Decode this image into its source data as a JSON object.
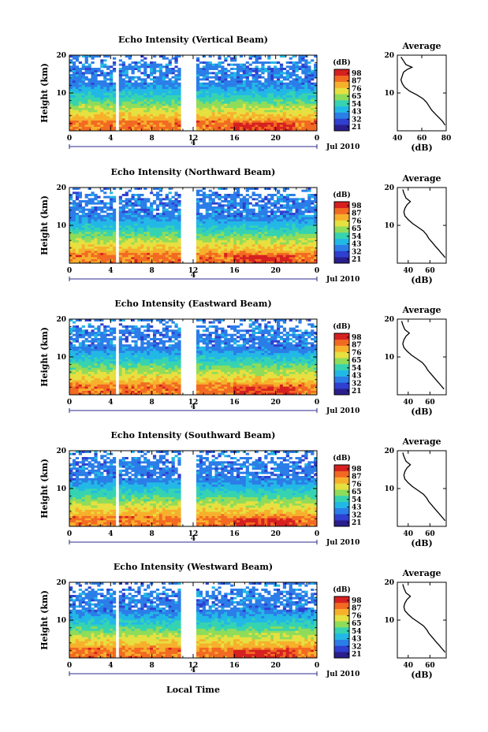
{
  "chart_data": [
    {
      "type": "heatmap",
      "title": "Echo Intensity (Vertical Beam)",
      "ylabel": "Height (km)",
      "xticks": [
        "0",
        "4",
        "8",
        "12",
        "16",
        "20",
        "0"
      ],
      "xlim": [
        0,
        24
      ],
      "ylim": [
        0,
        20
      ],
      "yticks": [
        "20",
        "10"
      ],
      "date_marker": "4",
      "date_label": "Jul 2010",
      "colorbar_label": "(dB)",
      "colorbar_ticks": [
        "98",
        "87",
        "76",
        "65",
        "54",
        "43",
        "32",
        "21"
      ],
      "gaps_hours": [
        [
          4.5,
          4.8
        ],
        [
          10.9,
          12.2
        ]
      ],
      "avg_title": "Average",
      "avg_xlabel": "(dB)",
      "avg_xticks": [
        "40",
        "60",
        "80"
      ],
      "avg_xlim": [
        40,
        80
      ],
      "avg_yticks": [
        "20",
        "10"
      ],
      "avg_profile": [
        [
          79,
          1.5
        ],
        [
          77,
          2.5
        ],
        [
          74,
          3.5
        ],
        [
          71,
          4.5
        ],
        [
          68,
          5.5
        ],
        [
          66,
          6.5
        ],
        [
          64,
          7.5
        ],
        [
          61,
          8.5
        ],
        [
          56,
          9.5
        ],
        [
          50,
          10.5
        ],
        [
          46,
          11.5
        ],
        [
          44,
          12.5
        ],
        [
          43,
          13.5
        ],
        [
          44,
          14.5
        ],
        [
          45,
          15.5
        ],
        [
          48,
          16.2
        ],
        [
          52,
          16.8
        ],
        [
          47,
          17.5
        ],
        [
          45,
          18.5
        ],
        [
          43,
          19.5
        ]
      ]
    },
    {
      "type": "heatmap",
      "title": "Echo Intensity (Northward Beam)",
      "ylabel": "Height (km)",
      "xticks": [
        "0",
        "4",
        "8",
        "12",
        "16",
        "20",
        "0"
      ],
      "xlim": [
        0,
        24
      ],
      "ylim": [
        0,
        20
      ],
      "yticks": [
        "20",
        "10"
      ],
      "date_marker": "4",
      "date_label": "Jul 2010",
      "colorbar_label": "(dB)",
      "colorbar_ticks": [
        "98",
        "87",
        "76",
        "65",
        "54",
        "43",
        "32",
        "21"
      ],
      "gaps_hours": [
        [
          4.5,
          4.8
        ],
        [
          10.9,
          12.2
        ]
      ],
      "avg_title": "Average",
      "avg_xlabel": "(dB)",
      "avg_xticks": [
        "40",
        "60"
      ],
      "avg_xlim": [
        30,
        75
      ],
      "avg_yticks": [
        "20",
        "10"
      ],
      "avg_profile": [
        [
          74,
          1.5
        ],
        [
          71,
          2.5
        ],
        [
          68,
          3.5
        ],
        [
          65,
          4.5
        ],
        [
          62,
          5.5
        ],
        [
          59,
          6.5
        ],
        [
          57,
          7.5
        ],
        [
          54,
          8.5
        ],
        [
          49,
          9.5
        ],
        [
          44,
          10.5
        ],
        [
          40,
          11.5
        ],
        [
          37,
          12.5
        ],
        [
          36,
          13.5
        ],
        [
          37,
          14.5
        ],
        [
          39,
          15.5
        ],
        [
          42,
          16.3
        ],
        [
          38,
          17.2
        ],
        [
          36,
          18.5
        ],
        [
          35,
          19.5
        ]
      ]
    },
    {
      "type": "heatmap",
      "title": "Echo Intensity (Eastward Beam)",
      "ylabel": "Height (km)",
      "xticks": [
        "0",
        "4",
        "8",
        "12",
        "16",
        "20",
        "0"
      ],
      "xlim": [
        0,
        24
      ],
      "ylim": [
        0,
        20
      ],
      "yticks": [
        "20",
        "10"
      ],
      "date_marker": "4",
      "date_label": "Jul 2010",
      "colorbar_label": "(dB)",
      "colorbar_ticks": [
        "98",
        "87",
        "76",
        "65",
        "54",
        "43",
        "32",
        "21"
      ],
      "gaps_hours": [
        [
          4.5,
          4.8
        ],
        [
          10.9,
          12.2
        ]
      ],
      "avg_title": "Average",
      "avg_xlabel": "(dB)",
      "avg_xticks": [
        "40",
        "60"
      ],
      "avg_xlim": [
        30,
        75
      ],
      "avg_yticks": [
        "20",
        "10"
      ],
      "avg_profile": [
        [
          73,
          1.5
        ],
        [
          70,
          2.5
        ],
        [
          67,
          3.5
        ],
        [
          64,
          4.5
        ],
        [
          61,
          5.5
        ],
        [
          58,
          6.5
        ],
        [
          56,
          7.5
        ],
        [
          53,
          8.5
        ],
        [
          48,
          9.5
        ],
        [
          43,
          10.5
        ],
        [
          39,
          11.5
        ],
        [
          36,
          12.5
        ],
        [
          35,
          13.5
        ],
        [
          36,
          14.5
        ],
        [
          38,
          15.5
        ],
        [
          41,
          16.3
        ],
        [
          37,
          17.2
        ],
        [
          35,
          18.5
        ],
        [
          34,
          19.5
        ]
      ]
    },
    {
      "type": "heatmap",
      "title": "Echo Intensity (Southward Beam)",
      "ylabel": "Height (km)",
      "xticks": [
        "0",
        "4",
        "8",
        "12",
        "16",
        "20",
        "0"
      ],
      "xlim": [
        0,
        24
      ],
      "ylim": [
        0,
        20
      ],
      "yticks": [
        "20",
        "10"
      ],
      "date_marker": "4",
      "date_label": "Jul 2010",
      "colorbar_label": "(dB)",
      "colorbar_ticks": [
        "98",
        "87",
        "76",
        "65",
        "54",
        "43",
        "32",
        "21"
      ],
      "gaps_hours": [
        [
          4.5,
          4.8
        ],
        [
          10.9,
          12.2
        ]
      ],
      "avg_title": "Average",
      "avg_xlabel": "(dB)",
      "avg_xticks": [
        "40",
        "60"
      ],
      "avg_xlim": [
        30,
        75
      ],
      "avg_yticks": [
        "20",
        "10"
      ],
      "avg_profile": [
        [
          74,
          1.5
        ],
        [
          71,
          2.5
        ],
        [
          68,
          3.5
        ],
        [
          65,
          4.5
        ],
        [
          62,
          5.5
        ],
        [
          59,
          6.5
        ],
        [
          57,
          7.5
        ],
        [
          54,
          8.5
        ],
        [
          49,
          9.5
        ],
        [
          44,
          10.5
        ],
        [
          40,
          11.5
        ],
        [
          37,
          12.5
        ],
        [
          36,
          13.5
        ],
        [
          37,
          14.5
        ],
        [
          39,
          15.5
        ],
        [
          42,
          16.3
        ],
        [
          38,
          17.2
        ],
        [
          36,
          18.5
        ],
        [
          35,
          19.5
        ]
      ]
    },
    {
      "type": "heatmap",
      "title": "Echo Intensity (Westward Beam)",
      "ylabel": "Height (km)",
      "xticks": [
        "0",
        "4",
        "8",
        "12",
        "16",
        "20",
        "0"
      ],
      "xlim": [
        0,
        24
      ],
      "ylim": [
        0,
        20
      ],
      "yticks": [
        "20",
        "10"
      ],
      "date_marker": "4",
      "date_label": "Jul 2010",
      "colorbar_label": "(dB)",
      "colorbar_ticks": [
        "98",
        "87",
        "76",
        "65",
        "54",
        "43",
        "32",
        "21"
      ],
      "gaps_hours": [
        [
          4.5,
          4.8
        ],
        [
          10.9,
          12.2
        ]
      ],
      "avg_title": "Average",
      "avg_xlabel": "(dB)",
      "avg_xticks": [
        "40",
        "60"
      ],
      "avg_xlim": [
        30,
        75
      ],
      "avg_yticks": [
        "20",
        "10"
      ],
      "avg_profile": [
        [
          74,
          1.5
        ],
        [
          71,
          2.5
        ],
        [
          68,
          3.5
        ],
        [
          65,
          4.5
        ],
        [
          62,
          5.5
        ],
        [
          59,
          6.5
        ],
        [
          57,
          7.5
        ],
        [
          54,
          8.5
        ],
        [
          49,
          9.5
        ],
        [
          44,
          10.5
        ],
        [
          40,
          11.5
        ],
        [
          37,
          12.5
        ],
        [
          36,
          13.5
        ],
        [
          37,
          14.5
        ],
        [
          39,
          15.5
        ],
        [
          42,
          16.3
        ],
        [
          38,
          17.2
        ],
        [
          36,
          18.5
        ],
        [
          35,
          19.5
        ]
      ]
    }
  ],
  "footer": {
    "xlabel": "Local Time"
  },
  "colormap": [
    "#2a1e8c",
    "#2f3fd0",
    "#2b7de8",
    "#22b8e6",
    "#36d3b0",
    "#8fdc5a",
    "#e6e040",
    "#f7b02c",
    "#f26a22",
    "#d62020"
  ]
}
